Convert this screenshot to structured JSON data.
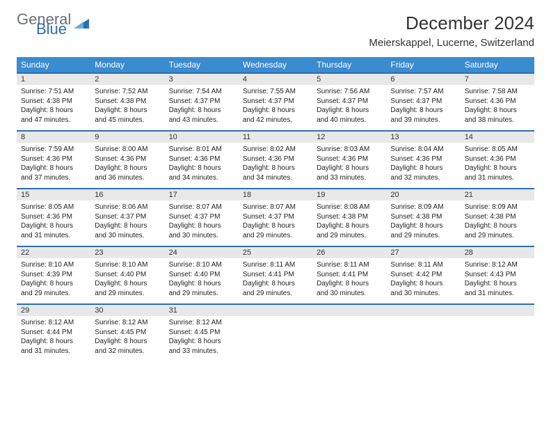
{
  "brand": {
    "word1": "General",
    "word2": "Blue"
  },
  "title": "December 2024",
  "location": "Meierskappel, Lucerne, Switzerland",
  "colors": {
    "header_bg": "#3a8bd0",
    "row_divider": "#2a6fb5",
    "daynum_bg": "#e8e8e8",
    "text": "#222222",
    "brand_gray": "#6b6f73",
    "brand_blue": "#2a6fb5"
  },
  "day_names": [
    "Sunday",
    "Monday",
    "Tuesday",
    "Wednesday",
    "Thursday",
    "Friday",
    "Saturday"
  ],
  "days": [
    {
      "n": 1,
      "sunrise": "7:51 AM",
      "sunset": "4:38 PM",
      "dl": "8 hours and 47 minutes."
    },
    {
      "n": 2,
      "sunrise": "7:52 AM",
      "sunset": "4:38 PM",
      "dl": "8 hours and 45 minutes."
    },
    {
      "n": 3,
      "sunrise": "7:54 AM",
      "sunset": "4:37 PM",
      "dl": "8 hours and 43 minutes."
    },
    {
      "n": 4,
      "sunrise": "7:55 AM",
      "sunset": "4:37 PM",
      "dl": "8 hours and 42 minutes."
    },
    {
      "n": 5,
      "sunrise": "7:56 AM",
      "sunset": "4:37 PM",
      "dl": "8 hours and 40 minutes."
    },
    {
      "n": 6,
      "sunrise": "7:57 AM",
      "sunset": "4:37 PM",
      "dl": "8 hours and 39 minutes."
    },
    {
      "n": 7,
      "sunrise": "7:58 AM",
      "sunset": "4:36 PM",
      "dl": "8 hours and 38 minutes."
    },
    {
      "n": 8,
      "sunrise": "7:59 AM",
      "sunset": "4:36 PM",
      "dl": "8 hours and 37 minutes."
    },
    {
      "n": 9,
      "sunrise": "8:00 AM",
      "sunset": "4:36 PM",
      "dl": "8 hours and 36 minutes."
    },
    {
      "n": 10,
      "sunrise": "8:01 AM",
      "sunset": "4:36 PM",
      "dl": "8 hours and 34 minutes."
    },
    {
      "n": 11,
      "sunrise": "8:02 AM",
      "sunset": "4:36 PM",
      "dl": "8 hours and 34 minutes."
    },
    {
      "n": 12,
      "sunrise": "8:03 AM",
      "sunset": "4:36 PM",
      "dl": "8 hours and 33 minutes."
    },
    {
      "n": 13,
      "sunrise": "8:04 AM",
      "sunset": "4:36 PM",
      "dl": "8 hours and 32 minutes."
    },
    {
      "n": 14,
      "sunrise": "8:05 AM",
      "sunset": "4:36 PM",
      "dl": "8 hours and 31 minutes."
    },
    {
      "n": 15,
      "sunrise": "8:05 AM",
      "sunset": "4:36 PM",
      "dl": "8 hours and 31 minutes."
    },
    {
      "n": 16,
      "sunrise": "8:06 AM",
      "sunset": "4:37 PM",
      "dl": "8 hours and 30 minutes."
    },
    {
      "n": 17,
      "sunrise": "8:07 AM",
      "sunset": "4:37 PM",
      "dl": "8 hours and 30 minutes."
    },
    {
      "n": 18,
      "sunrise": "8:07 AM",
      "sunset": "4:37 PM",
      "dl": "8 hours and 29 minutes."
    },
    {
      "n": 19,
      "sunrise": "8:08 AM",
      "sunset": "4:38 PM",
      "dl": "8 hours and 29 minutes."
    },
    {
      "n": 20,
      "sunrise": "8:09 AM",
      "sunset": "4:38 PM",
      "dl": "8 hours and 29 minutes."
    },
    {
      "n": 21,
      "sunrise": "8:09 AM",
      "sunset": "4:38 PM",
      "dl": "8 hours and 29 minutes."
    },
    {
      "n": 22,
      "sunrise": "8:10 AM",
      "sunset": "4:39 PM",
      "dl": "8 hours and 29 minutes."
    },
    {
      "n": 23,
      "sunrise": "8:10 AM",
      "sunset": "4:40 PM",
      "dl": "8 hours and 29 minutes."
    },
    {
      "n": 24,
      "sunrise": "8:10 AM",
      "sunset": "4:40 PM",
      "dl": "8 hours and 29 minutes."
    },
    {
      "n": 25,
      "sunrise": "8:11 AM",
      "sunset": "4:41 PM",
      "dl": "8 hours and 29 minutes."
    },
    {
      "n": 26,
      "sunrise": "8:11 AM",
      "sunset": "4:41 PM",
      "dl": "8 hours and 30 minutes."
    },
    {
      "n": 27,
      "sunrise": "8:11 AM",
      "sunset": "4:42 PM",
      "dl": "8 hours and 30 minutes."
    },
    {
      "n": 28,
      "sunrise": "8:12 AM",
      "sunset": "4:43 PM",
      "dl": "8 hours and 31 minutes."
    },
    {
      "n": 29,
      "sunrise": "8:12 AM",
      "sunset": "4:44 PM",
      "dl": "8 hours and 31 minutes."
    },
    {
      "n": 30,
      "sunrise": "8:12 AM",
      "sunset": "4:45 PM",
      "dl": "8 hours and 32 minutes."
    },
    {
      "n": 31,
      "sunrise": "8:12 AM",
      "sunset": "4:45 PM",
      "dl": "8 hours and 33 minutes."
    }
  ],
  "labels": {
    "sunrise": "Sunrise: ",
    "sunset": "Sunset: ",
    "daylight": "Daylight: "
  },
  "layout": {
    "first_weekday_index": 0,
    "trailing_empty": 4
  }
}
